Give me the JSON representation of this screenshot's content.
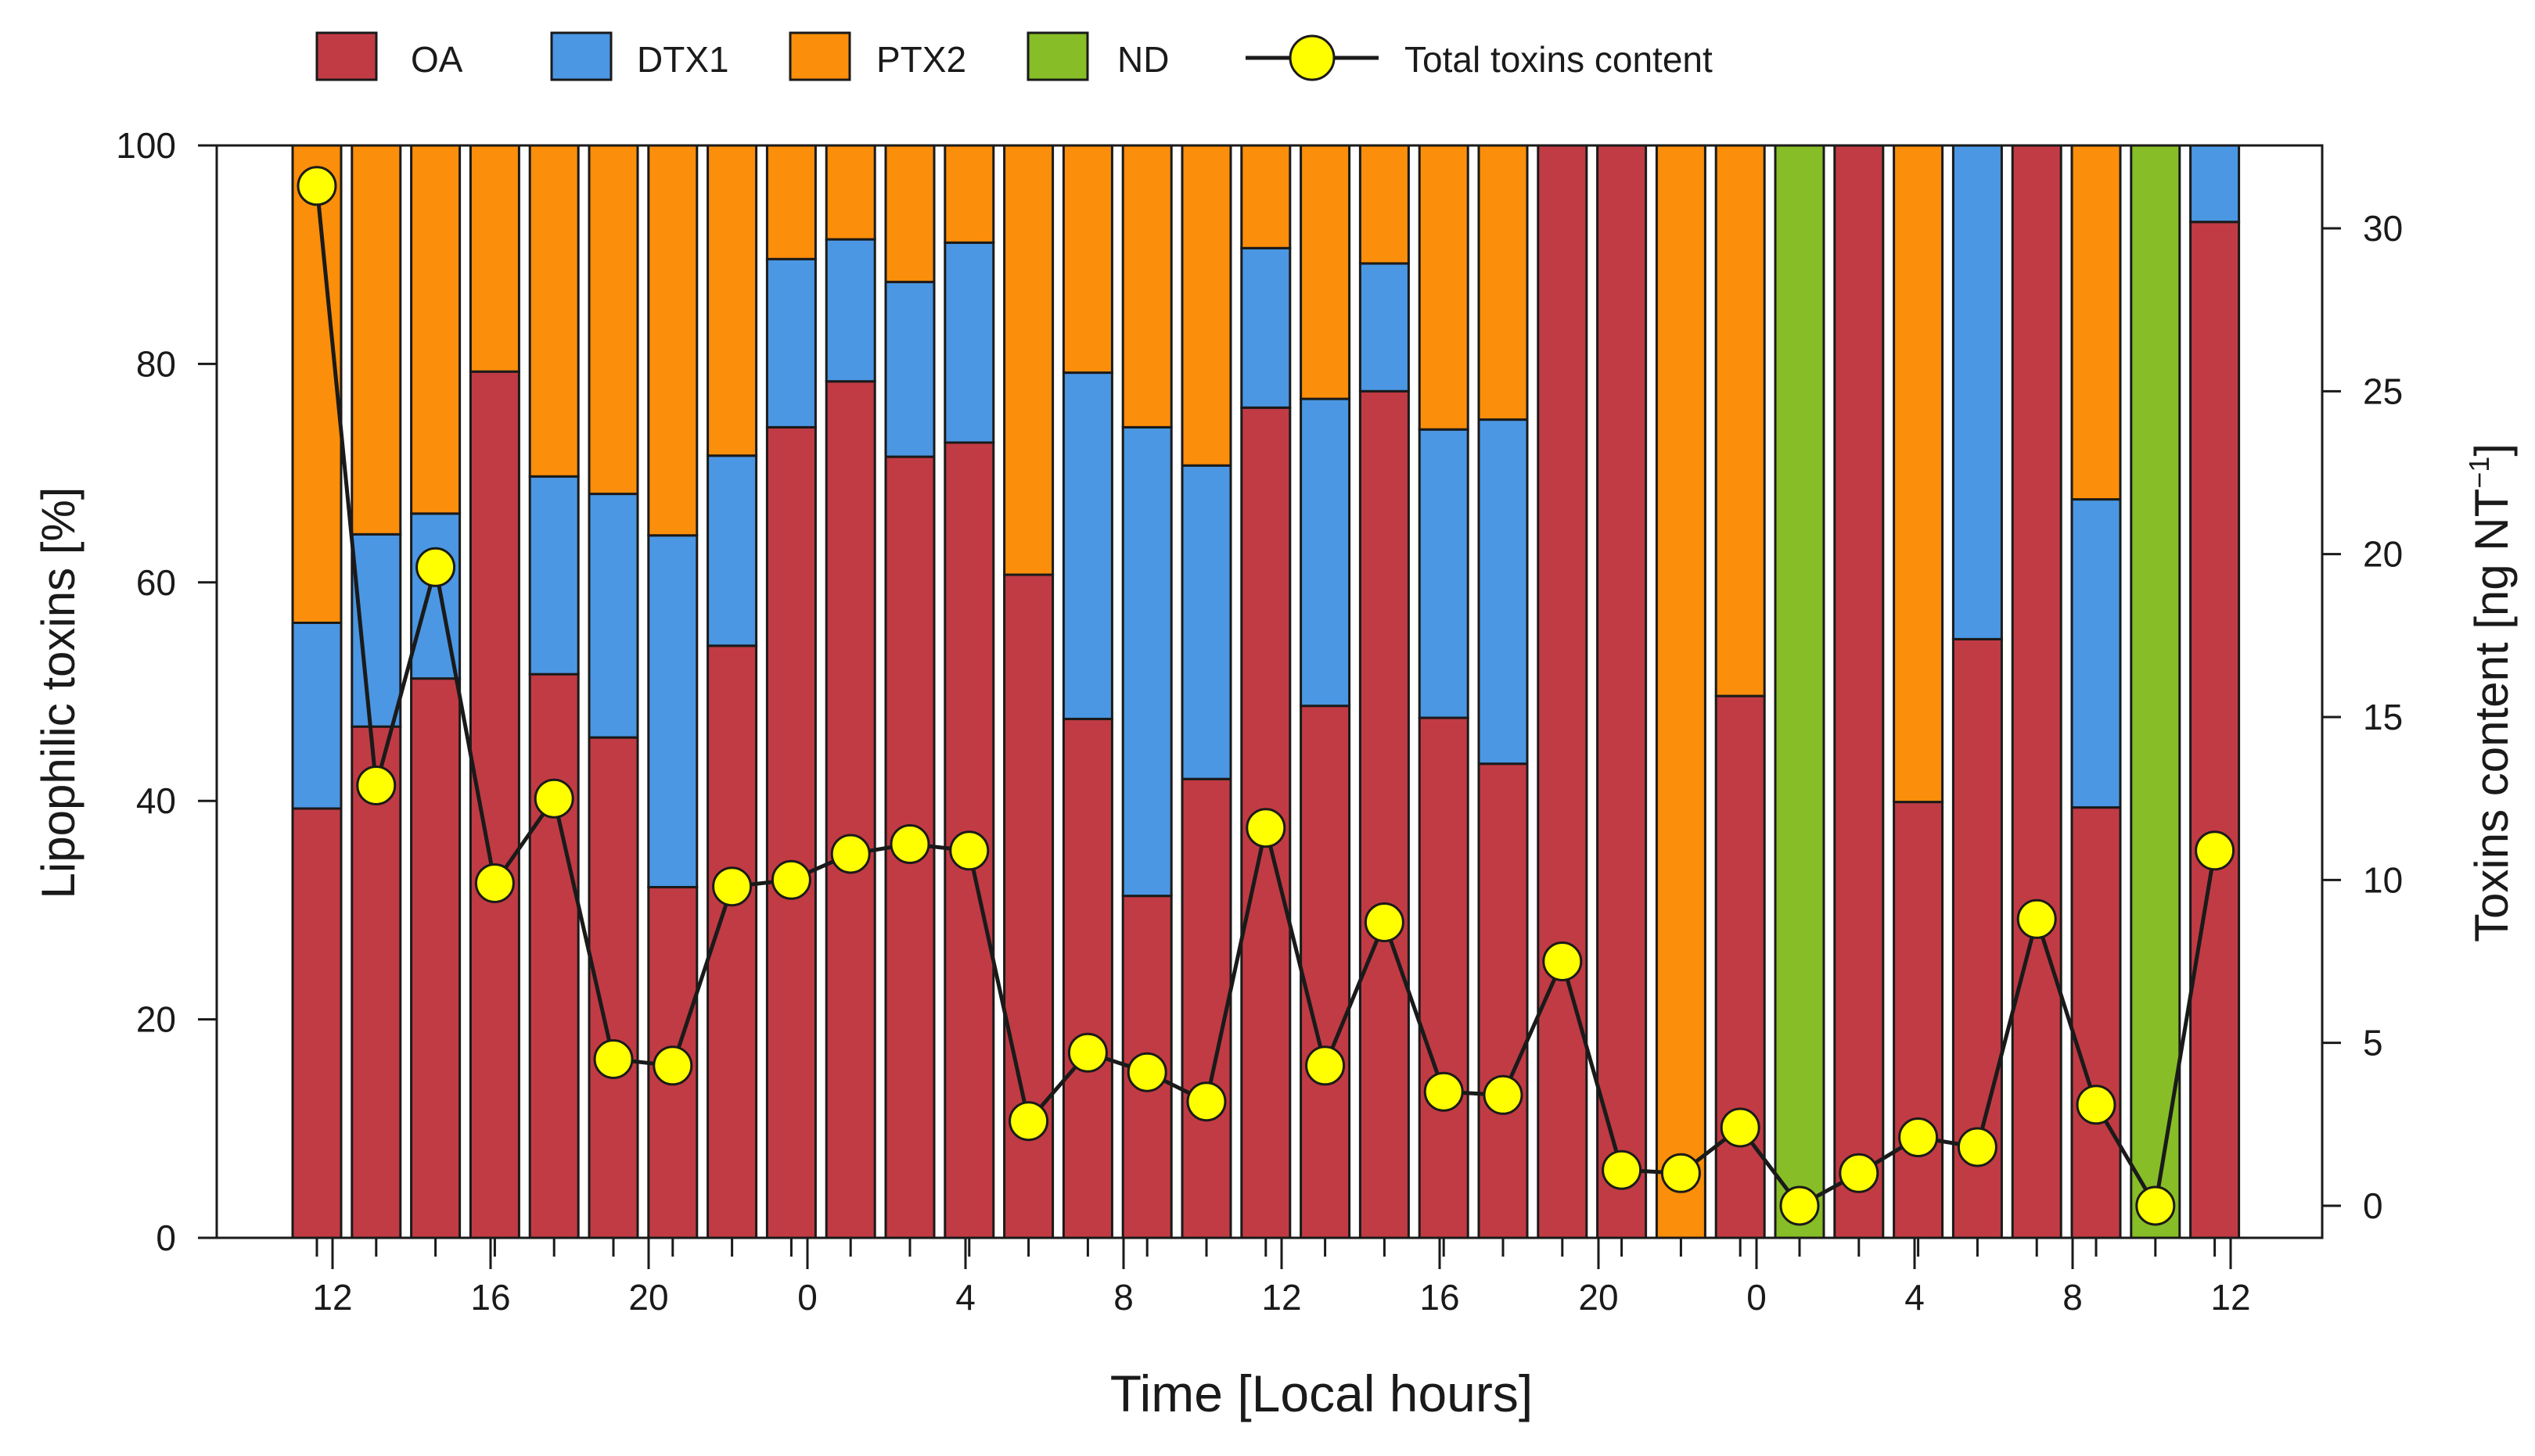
{
  "chart_data": {
    "type": "bar",
    "stacked": true,
    "x_tick_labels": [
      "12",
      "16",
      "20",
      "0",
      "4",
      "8",
      "12",
      "16",
      "20",
      "0",
      "4",
      "8",
      "12"
    ],
    "xlabel": "Time [Local hours]",
    "ylabel": "Lipophilic toxins [%]",
    "ylabel_right": "Toxins content [ng NT",
    "ylabel_right_superscript": "−1",
    "ylabel_right_close": "]",
    "ylim": [
      0,
      100
    ],
    "ylim_right": [
      -1,
      32
    ],
    "y_ticks": [
      "0",
      "20",
      "40",
      "60",
      "80",
      "100"
    ],
    "y_ticks_right": [
      "0",
      "5",
      "10",
      "15",
      "20",
      "25",
      "30"
    ],
    "legend_position": "top",
    "legend": [
      {
        "key": "OA",
        "label": "OA"
      },
      {
        "key": "DTX1",
        "label": "DTX1"
      },
      {
        "key": "PTX2",
        "label": "PTX2"
      },
      {
        "key": "ND",
        "label": "ND"
      },
      {
        "key": "total",
        "label": "Total toxins content"
      }
    ],
    "colors": {
      "OA": "#c13b44",
      "DTX1": "#4b97e3",
      "PTX2": "#fb8e0a",
      "ND": "#87bd27",
      "line": "#1a1a1a",
      "marker": "#ffff00"
    },
    "bars": [
      {
        "OA": 39.3,
        "DTX1": 17.0,
        "PTX2": 43.7,
        "ND": 0
      },
      {
        "OA": 46.8,
        "DTX1": 17.6,
        "PTX2": 35.6,
        "ND": 0
      },
      {
        "OA": 51.2,
        "DTX1": 15.1,
        "PTX2": 33.7,
        "ND": 0
      },
      {
        "OA": 79.3,
        "DTX1": 0,
        "PTX2": 20.7,
        "ND": 0
      },
      {
        "OA": 51.6,
        "DTX1": 18.1,
        "PTX2": 30.3,
        "ND": 0
      },
      {
        "OA": 45.8,
        "DTX1": 22.3,
        "PTX2": 31.9,
        "ND": 0
      },
      {
        "OA": 32.1,
        "DTX1": 32.2,
        "PTX2": 35.7,
        "ND": 0
      },
      {
        "OA": 54.2,
        "DTX1": 17.4,
        "PTX2": 28.4,
        "ND": 0
      },
      {
        "OA": 74.2,
        "DTX1": 15.4,
        "PTX2": 10.4,
        "ND": 0
      },
      {
        "OA": 78.4,
        "DTX1": 13.0,
        "PTX2": 8.6,
        "ND": 0
      },
      {
        "OA": 71.5,
        "DTX1": 16.0,
        "PTX2": 12.5,
        "ND": 0
      },
      {
        "OA": 72.8,
        "DTX1": 18.3,
        "PTX2": 8.9,
        "ND": 0
      },
      {
        "OA": 60.7,
        "DTX1": 0,
        "PTX2": 39.3,
        "ND": 0
      },
      {
        "OA": 47.5,
        "DTX1": 31.7,
        "PTX2": 20.8,
        "ND": 0
      },
      {
        "OA": 31.3,
        "DTX1": 42.9,
        "PTX2": 25.8,
        "ND": 0
      },
      {
        "OA": 42.0,
        "DTX1": 28.7,
        "PTX2": 29.3,
        "ND": 0
      },
      {
        "OA": 76.0,
        "DTX1": 14.6,
        "PTX2": 9.4,
        "ND": 0
      },
      {
        "OA": 48.7,
        "DTX1": 28.1,
        "PTX2": 23.2,
        "ND": 0
      },
      {
        "OA": 77.5,
        "DTX1": 11.7,
        "PTX2": 10.8,
        "ND": 0
      },
      {
        "OA": 47.6,
        "DTX1": 26.4,
        "PTX2": 26.0,
        "ND": 0
      },
      {
        "OA": 43.4,
        "DTX1": 31.5,
        "PTX2": 25.1,
        "ND": 0
      },
      {
        "OA": 100,
        "DTX1": 0,
        "PTX2": 0,
        "ND": 0
      },
      {
        "OA": 100,
        "DTX1": 0,
        "PTX2": 0,
        "ND": 0
      },
      {
        "OA": 0,
        "DTX1": 0,
        "PTX2": 100,
        "ND": 0
      },
      {
        "OA": 49.6,
        "DTX1": 0,
        "PTX2": 50.4,
        "ND": 0
      },
      {
        "OA": 0,
        "DTX1": 0,
        "PTX2": 0,
        "ND": 100
      },
      {
        "OA": 100,
        "DTX1": 0,
        "PTX2": 0,
        "ND": 0
      },
      {
        "OA": 39.9,
        "DTX1": 0,
        "PTX2": 60.1,
        "ND": 0
      },
      {
        "OA": 54.8,
        "DTX1": 45.2,
        "PTX2": 0,
        "ND": 0
      },
      {
        "OA": 100,
        "DTX1": 0,
        "PTX2": 0,
        "ND": 0
      },
      {
        "OA": 39.4,
        "DTX1": 28.2,
        "PTX2": 32.4,
        "ND": 0
      },
      {
        "OA": 0,
        "DTX1": 0,
        "PTX2": 0,
        "ND": 100
      },
      {
        "OA": 93.0,
        "DTX1": 7.0,
        "PTX2": 0,
        "ND": 0
      }
    ],
    "series_total_toxins": {
      "name": "Total toxins content",
      "axis": "right",
      "values": [
        31.3,
        12.9,
        19.6,
        9.9,
        12.5,
        4.5,
        4.3,
        9.8,
        10.0,
        10.8,
        11.1,
        10.9,
        2.6,
        4.7,
        4.1,
        3.2,
        11.6,
        4.3,
        8.7,
        3.5,
        3.4,
        7.5,
        1.1,
        1.0,
        2.4,
        0.0,
        1.0,
        2.1,
        1.8,
        8.8,
        3.1,
        0.0,
        10.9
      ]
    }
  }
}
